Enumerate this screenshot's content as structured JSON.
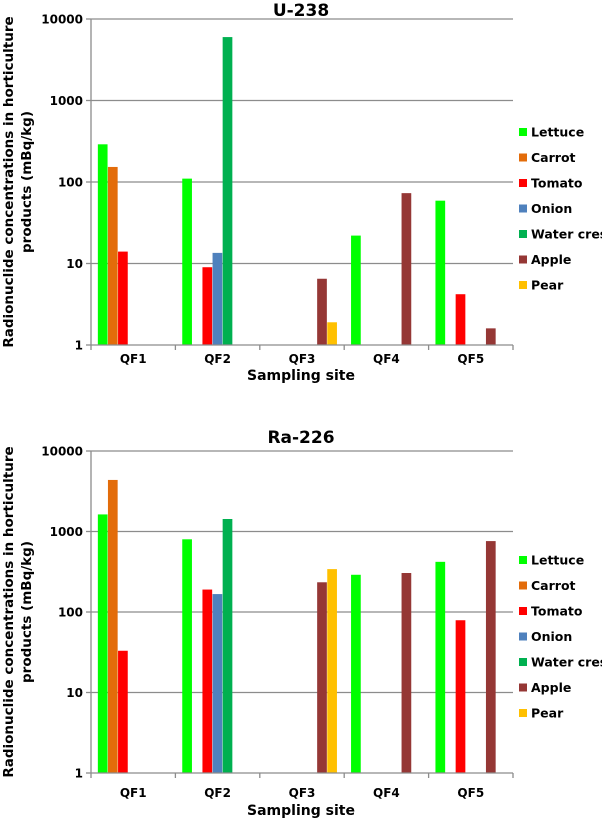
{
  "chart_data": [
    {
      "type": "bar",
      "title": "U-238",
      "xlabel": "Sampling site",
      "ylabel": "Radionuclide concentrations in horticulture products (mBq/kg)",
      "ylabel_lines": [
        "Radionuclide concentrations in horticulture",
        "products (mBq/kg)"
      ],
      "yscale": "log",
      "ylim": [
        1,
        10000
      ],
      "yticks": [
        1,
        10,
        100,
        1000,
        10000
      ],
      "ytick_labels": [
        "1",
        "10",
        "100",
        "1000",
        "10000"
      ],
      "grid": true,
      "legend_position": "right",
      "categories": [
        "QF1",
        "QF2",
        "QF3",
        "QF4",
        "QF5"
      ],
      "series": [
        {
          "name": "Lettuce",
          "color": "#00FF00",
          "values": [
            290,
            110,
            null,
            22,
            59
          ]
        },
        {
          "name": "Carrot",
          "color": "#E36C0A",
          "values": [
            153,
            null,
            null,
            null,
            null
          ]
        },
        {
          "name": "Tomato",
          "color": "#FF0000",
          "values": [
            14,
            9,
            null,
            null,
            4.2
          ]
        },
        {
          "name": "Onion",
          "color": "#4F81BD",
          "values": [
            null,
            13.5,
            null,
            null,
            null
          ]
        },
        {
          "name": "Water cress",
          "color": "#00B050",
          "values": [
            null,
            6000,
            null,
            null,
            null
          ]
        },
        {
          "name": "Apple",
          "color": "#953735",
          "values": [
            null,
            null,
            6.5,
            73,
            1.6
          ]
        },
        {
          "name": "Pear",
          "color": "#FFC000",
          "values": [
            null,
            null,
            1.9,
            null,
            null
          ]
        }
      ]
    },
    {
      "type": "bar",
      "title": "Ra-226",
      "xlabel": "Sampling site",
      "ylabel": "Radionuclide concentrations in horticulture products (mBq/kg)",
      "ylabel_lines": [
        "Radionuclide concentrations in horticulture",
        "products (mBq/kg)"
      ],
      "yscale": "log",
      "ylim": [
        1,
        10000
      ],
      "yticks": [
        1,
        10,
        100,
        1000,
        10000
      ],
      "ytick_labels": [
        "1",
        "10",
        "100",
        "1000",
        "10000"
      ],
      "grid": true,
      "legend_position": "right",
      "categories": [
        "QF1",
        "QF2",
        "QF3",
        "QF4",
        "QF5"
      ],
      "series": [
        {
          "name": "Lettuce",
          "color": "#00FF00",
          "values": [
            1630,
            800,
            null,
            290,
            420
          ]
        },
        {
          "name": "Carrot",
          "color": "#E36C0A",
          "values": [
            4370,
            null,
            null,
            null,
            null
          ]
        },
        {
          "name": "Tomato",
          "color": "#FF0000",
          "values": [
            33,
            190,
            null,
            null,
            79
          ]
        },
        {
          "name": "Onion",
          "color": "#4F81BD",
          "values": [
            null,
            167,
            null,
            null,
            null
          ]
        },
        {
          "name": "Water cress",
          "color": "#00B050",
          "values": [
            null,
            1430,
            null,
            null,
            null
          ]
        },
        {
          "name": "Apple",
          "color": "#953735",
          "values": [
            null,
            null,
            234,
            305,
            760
          ]
        },
        {
          "name": "Pear",
          "color": "#FFC000",
          "values": [
            null,
            null,
            341,
            null,
            null
          ]
        }
      ]
    }
  ]
}
